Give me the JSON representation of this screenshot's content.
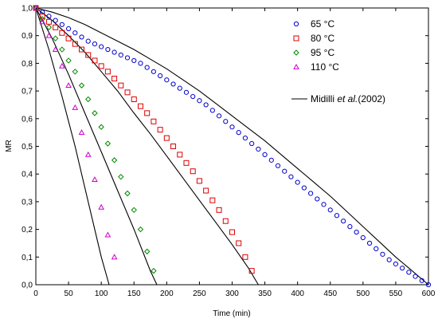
{
  "chart_data": {
    "type": "scatter",
    "xlabel": "Time (min)",
    "ylabel": "MR",
    "xlim": [
      0,
      600
    ],
    "ylim": [
      0,
      1.0
    ],
    "x_ticks": [
      0,
      50,
      100,
      150,
      200,
      250,
      300,
      350,
      400,
      450,
      500,
      550,
      600
    ],
    "y_ticks": [
      "0,0",
      "0,1",
      "0,2",
      "0,3",
      "0,4",
      "0,5",
      "0,6",
      "0,7",
      "0,8",
      "0,9",
      "1,0"
    ],
    "grid": false,
    "legend_position": "top-right",
    "series": [
      {
        "name": "65 °C",
        "marker": "circle",
        "color": "#0000cc",
        "x": [
          0,
          10,
          20,
          30,
          40,
          50,
          60,
          70,
          80,
          90,
          100,
          110,
          120,
          130,
          140,
          150,
          160,
          170,
          180,
          190,
          200,
          210,
          220,
          230,
          240,
          250,
          260,
          270,
          280,
          290,
          300,
          310,
          320,
          330,
          340,
          350,
          360,
          370,
          380,
          390,
          400,
          410,
          420,
          430,
          440,
          450,
          460,
          470,
          480,
          490,
          500,
          510,
          520,
          530,
          540,
          550,
          560,
          570,
          580,
          590,
          600
        ],
        "y": [
          1.0,
          0.985,
          0.97,
          0.955,
          0.94,
          0.925,
          0.91,
          0.895,
          0.88,
          0.87,
          0.86,
          0.85,
          0.84,
          0.83,
          0.82,
          0.81,
          0.8,
          0.785,
          0.77,
          0.755,
          0.74,
          0.725,
          0.71,
          0.695,
          0.68,
          0.665,
          0.65,
          0.63,
          0.61,
          0.59,
          0.57,
          0.55,
          0.53,
          0.51,
          0.49,
          0.47,
          0.45,
          0.43,
          0.41,
          0.39,
          0.37,
          0.35,
          0.33,
          0.31,
          0.29,
          0.27,
          0.25,
          0.23,
          0.21,
          0.19,
          0.17,
          0.15,
          0.13,
          0.11,
          0.09,
          0.075,
          0.06,
          0.045,
          0.03,
          0.015,
          0.0
        ]
      },
      {
        "name": "80 °C",
        "marker": "square",
        "color": "#dd0000",
        "x": [
          0,
          10,
          20,
          30,
          40,
          50,
          60,
          70,
          80,
          90,
          100,
          110,
          120,
          130,
          140,
          150,
          160,
          170,
          180,
          190,
          200,
          210,
          220,
          230,
          240,
          250,
          260,
          270,
          280,
          290,
          300,
          310,
          320,
          330
        ],
        "y": [
          1.0,
          0.97,
          0.95,
          0.93,
          0.91,
          0.89,
          0.87,
          0.85,
          0.83,
          0.81,
          0.79,
          0.77,
          0.745,
          0.72,
          0.695,
          0.67,
          0.645,
          0.62,
          0.59,
          0.56,
          0.53,
          0.5,
          0.47,
          0.44,
          0.41,
          0.375,
          0.34,
          0.305,
          0.27,
          0.23,
          0.19,
          0.15,
          0.1,
          0.05
        ]
      },
      {
        "name": "95 °C",
        "marker": "diamond",
        "color": "#008800",
        "x": [
          0,
          10,
          20,
          30,
          40,
          50,
          60,
          70,
          80,
          90,
          100,
          110,
          120,
          130,
          140,
          150,
          160,
          170,
          180
        ],
        "y": [
          1.0,
          0.96,
          0.93,
          0.89,
          0.85,
          0.81,
          0.77,
          0.72,
          0.67,
          0.62,
          0.57,
          0.51,
          0.45,
          0.39,
          0.33,
          0.27,
          0.2,
          0.12,
          0.05
        ]
      },
      {
        "name": "110 °C",
        "marker": "triangle",
        "color": "#cc00cc",
        "x": [
          0,
          10,
          20,
          30,
          40,
          50,
          60,
          70,
          80,
          90,
          100,
          110,
          120
        ],
        "y": [
          1.0,
          0.95,
          0.9,
          0.85,
          0.79,
          0.72,
          0.64,
          0.55,
          0.47,
          0.38,
          0.28,
          0.18,
          0.1
        ]
      }
    ],
    "model_curves": {
      "name_prefix": "Midilli ",
      "name_italic": "et al.",
      "name_suffix": "(2002)",
      "color": "#000000",
      "curves": [
        {
          "x": [
            0,
            25,
            50,
            75,
            100,
            125,
            150,
            175,
            200,
            225,
            250,
            275,
            300,
            325,
            350,
            375,
            400,
            425,
            450,
            475,
            500,
            525,
            550,
            575,
            600
          ],
          "y": [
            1.0,
            0.985,
            0.965,
            0.94,
            0.91,
            0.88,
            0.85,
            0.815,
            0.78,
            0.74,
            0.7,
            0.655,
            0.61,
            0.565,
            0.52,
            0.47,
            0.42,
            0.37,
            0.32,
            0.265,
            0.21,
            0.155,
            0.1,
            0.05,
            0.0
          ]
        },
        {
          "x": [
            0,
            25,
            50,
            75,
            100,
            125,
            150,
            175,
            200,
            225,
            250,
            275,
            300,
            325,
            340
          ],
          "y": [
            1.0,
            0.955,
            0.9,
            0.84,
            0.77,
            0.7,
            0.62,
            0.545,
            0.465,
            0.385,
            0.305,
            0.225,
            0.145,
            0.06,
            0.0
          ]
        },
        {
          "x": [
            0,
            25,
            50,
            75,
            100,
            125,
            150,
            175,
            185
          ],
          "y": [
            1.0,
            0.89,
            0.76,
            0.62,
            0.48,
            0.34,
            0.2,
            0.05,
            0.0
          ]
        },
        {
          "x": [
            0,
            20,
            40,
            60,
            80,
            100,
            112
          ],
          "y": [
            1.0,
            0.85,
            0.68,
            0.5,
            0.3,
            0.1,
            0.0
          ]
        }
      ]
    }
  }
}
